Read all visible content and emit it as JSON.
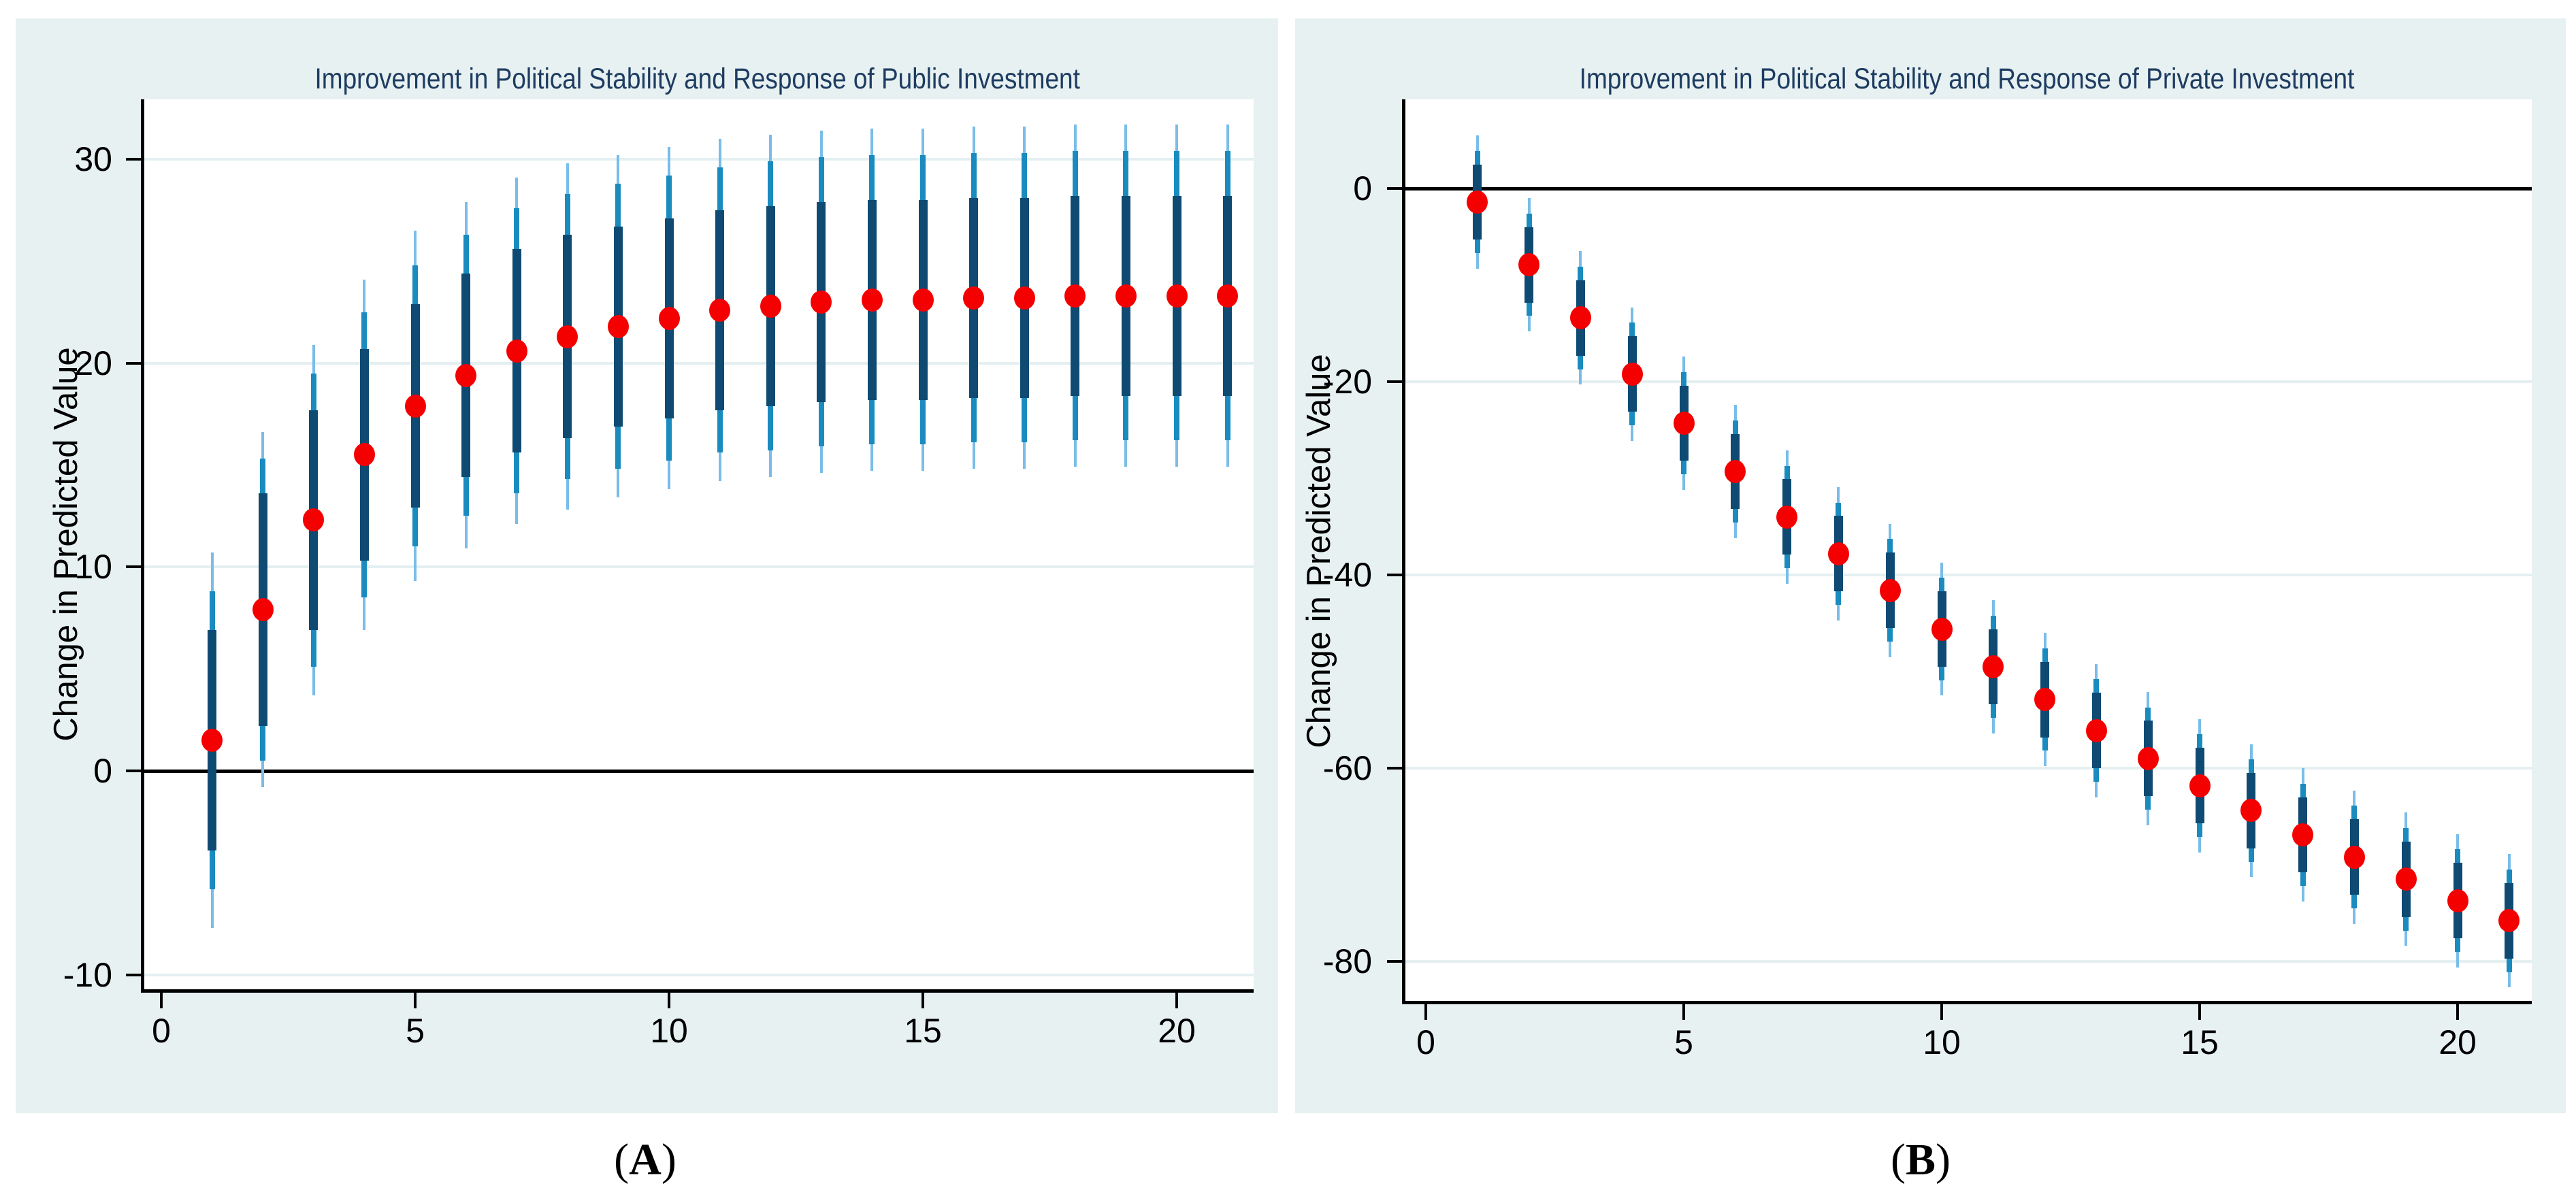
{
  "figure": {
    "captions": [
      {
        "open": "(",
        "letter": "A",
        "close": ")"
      },
      {
        "open": "(",
        "letter": "B",
        "close": ")"
      }
    ]
  },
  "colors": {
    "panel_background": "#e7f1f1",
    "plot_background": "#ffffff",
    "gridline": "#e4eff1",
    "axis": "#000000",
    "title": "#1e3c61",
    "dot": "#f50000",
    "ci_inner": "#0e4a72",
    "ci_mid": "#1a8bbf",
    "ci_outer": "#79bde8"
  },
  "chart_data": [
    {
      "type": "scatter",
      "title": "Improvement in Political Stability and Response of Public Investment",
      "ylabel": "Change in Predicted Value",
      "xlabel": "",
      "legend": "none",
      "grid": "horizontal",
      "ylim": [
        -10.8,
        32.9
      ],
      "xlim": [
        -0.4,
        21.5
      ],
      "ytick_values": [
        30,
        20,
        10,
        0,
        -10
      ],
      "ytick_labels": [
        "30",
        "20",
        "10",
        "0",
        "-10"
      ],
      "xtick_values": [
        0,
        5,
        10,
        15,
        20
      ],
      "xtick_labels": [
        "0",
        "5",
        "10",
        "15",
        "20"
      ],
      "zero_reference_line": 0,
      "x": [
        1,
        2,
        3,
        4,
        5,
        6,
        7,
        8,
        9,
        10,
        11,
        12,
        13,
        14,
        15,
        16,
        17,
        18,
        19,
        20,
        21
      ],
      "mean": [
        1.5,
        7.9,
        12.3,
        15.5,
        17.9,
        19.4,
        20.6,
        21.3,
        21.8,
        22.2,
        22.6,
        22.8,
        23.0,
        23.1,
        23.1,
        23.2,
        23.2,
        23.3,
        23.3,
        23.3,
        23.3
      ],
      "ci_inner": {
        "lo": [
          -3.9,
          2.2,
          6.9,
          10.3,
          12.9,
          14.4,
          15.6,
          16.3,
          16.9,
          17.3,
          17.7,
          17.9,
          18.1,
          18.2,
          18.2,
          18.3,
          18.3,
          18.4,
          18.4,
          18.4,
          18.4
        ],
        "hi": [
          6.9,
          13.6,
          17.7,
          20.7,
          22.9,
          24.4,
          25.6,
          26.3,
          26.7,
          27.1,
          27.5,
          27.7,
          27.9,
          28.0,
          28.0,
          28.1,
          28.1,
          28.2,
          28.2,
          28.2,
          28.2
        ]
      },
      "ci_mid": {
        "lo": [
          -5.8,
          0.5,
          5.1,
          8.5,
          11.0,
          12.5,
          13.6,
          14.3,
          14.8,
          15.2,
          15.6,
          15.7,
          15.9,
          16.0,
          16.0,
          16.1,
          16.1,
          16.2,
          16.2,
          16.2,
          16.2
        ],
        "hi": [
          8.8,
          15.3,
          19.5,
          22.5,
          24.8,
          26.3,
          27.6,
          28.3,
          28.8,
          29.2,
          29.6,
          29.9,
          30.1,
          30.2,
          30.2,
          30.3,
          30.3,
          30.4,
          30.4,
          30.4,
          30.4
        ]
      },
      "ci_outer": {
        "lo": [
          -7.7,
          -0.8,
          3.7,
          6.9,
          9.3,
          10.9,
          12.1,
          12.8,
          13.4,
          13.8,
          14.2,
          14.4,
          14.6,
          14.7,
          14.7,
          14.8,
          14.8,
          14.9,
          14.9,
          14.9,
          14.9
        ],
        "hi": [
          10.7,
          16.6,
          20.9,
          24.1,
          26.5,
          27.9,
          29.1,
          29.8,
          30.2,
          30.6,
          31.0,
          31.2,
          31.4,
          31.5,
          31.5,
          31.6,
          31.6,
          31.7,
          31.7,
          31.7,
          31.7
        ]
      }
    },
    {
      "type": "scatter",
      "title": "Improvement in Political Stability and Response of Private Investment",
      "ylabel": "Change in Predicted Value",
      "xlabel": "",
      "legend": "none",
      "grid": "horizontal",
      "ylim": [
        -84.2,
        9.2
      ],
      "xlim": [
        -0.45,
        21.4
      ],
      "ytick_values": [
        0,
        -20,
        -40,
        -60,
        -80
      ],
      "ytick_labels": [
        "0",
        "-20",
        "-40",
        "-60",
        "-80"
      ],
      "xtick_values": [
        0,
        5,
        10,
        15,
        20
      ],
      "xtick_labels": [
        "0",
        "5",
        "10",
        "15",
        "20"
      ],
      "zero_reference_line": 0,
      "x": [
        1,
        2,
        3,
        4,
        5,
        6,
        7,
        8,
        9,
        10,
        11,
        12,
        13,
        14,
        15,
        16,
        17,
        18,
        19,
        20,
        21
      ],
      "mean": [
        -1.4,
        -7.9,
        -13.4,
        -19.2,
        -24.3,
        -29.3,
        -34.0,
        -37.8,
        -41.6,
        -45.6,
        -49.5,
        -52.9,
        -56.1,
        -59.0,
        -61.8,
        -64.4,
        -66.9,
        -69.2,
        -71.5,
        -73.7,
        -75.8
      ],
      "ci_inner": {
        "lo": [
          -5.3,
          -11.8,
          -17.3,
          -23.1,
          -28.2,
          -33.2,
          -37.9,
          -41.7,
          -45.5,
          -49.5,
          -53.4,
          -56.8,
          -60.0,
          -62.9,
          -65.7,
          -68.3,
          -70.8,
          -73.1,
          -75.4,
          -77.6,
          -79.7
        ],
        "hi": [
          2.5,
          -4.0,
          -9.5,
          -15.3,
          -20.4,
          -25.4,
          -30.1,
          -33.9,
          -37.7,
          -41.7,
          -45.6,
          -49.0,
          -52.2,
          -55.1,
          -57.9,
          -60.5,
          -63.0,
          -65.3,
          -67.6,
          -69.8,
          -71.9
        ]
      },
      "ci_mid": {
        "lo": [
          -6.7,
          -13.2,
          -18.7,
          -24.5,
          -29.6,
          -34.6,
          -39.3,
          -43.1,
          -46.9,
          -50.9,
          -54.8,
          -58.2,
          -61.4,
          -64.3,
          -67.1,
          -69.7,
          -72.2,
          -74.5,
          -76.8,
          -79.0,
          -81.1
        ],
        "hi": [
          3.9,
          -2.6,
          -8.1,
          -13.9,
          -19.0,
          -24.0,
          -28.7,
          -32.5,
          -36.3,
          -40.3,
          -44.2,
          -47.6,
          -50.8,
          -53.7,
          -56.5,
          -59.1,
          -61.6,
          -63.9,
          -66.2,
          -68.4,
          -70.5
        ]
      },
      "ci_outer": {
        "lo": [
          -8.3,
          -14.8,
          -20.3,
          -26.1,
          -31.2,
          -36.2,
          -40.9,
          -44.7,
          -48.5,
          -52.5,
          -56.4,
          -59.8,
          -63.0,
          -65.9,
          -68.7,
          -71.3,
          -73.8,
          -76.1,
          -78.4,
          -80.6,
          -82.7
        ],
        "hi": [
          5.5,
          -1.0,
          -6.5,
          -12.3,
          -17.4,
          -22.4,
          -27.1,
          -30.9,
          -34.7,
          -38.7,
          -42.6,
          -46.0,
          -49.2,
          -52.1,
          -54.9,
          -57.5,
          -60.0,
          -62.3,
          -64.6,
          -66.8,
          -68.9
        ]
      }
    }
  ]
}
